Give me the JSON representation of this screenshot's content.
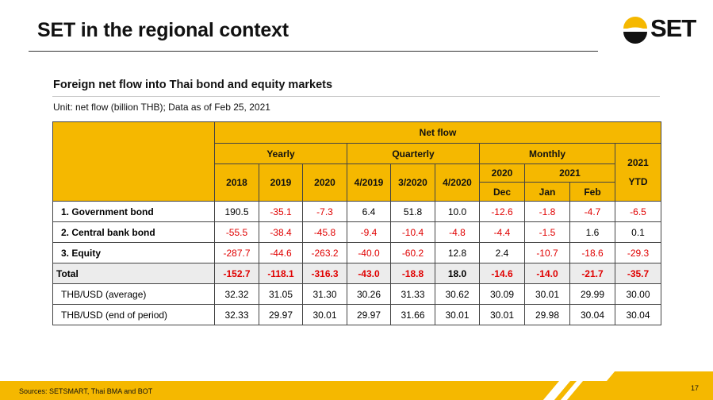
{
  "slide": {
    "title": "SET in the regional context",
    "logo_text": "SET",
    "subtitle": "Foreign net flow into Thai bond and equity markets",
    "unit": "Unit: net flow (billion THB); Data as of Feb 25, 2021",
    "source": "Sources: SETSMART, Thai BMA and BOT",
    "page_number": "17"
  },
  "colors": {
    "accent": "#f5b800",
    "negative": "#e00000",
    "total_row": "#ececec"
  },
  "table": {
    "header": {
      "net_flow": "Net flow",
      "yearly": "Yearly",
      "quarterly": "Quarterly",
      "monthly": "Monthly",
      "ytd_top": "2021",
      "ytd_bottom": "YTD",
      "year_2020": "2020",
      "year_2021": "2021",
      "columns": [
        "2018",
        "2019",
        "2020",
        "4/2019",
        "3/2020",
        "4/2020",
        "Dec",
        "Jan",
        "Feb"
      ]
    },
    "rows": [
      {
        "label": "1. Government bond",
        "cells": [
          "190.5",
          "-35.1",
          "-7.3",
          "6.4",
          "51.8",
          "10.0",
          "-12.6",
          "-1.8",
          "-4.7",
          "-6.5"
        ]
      },
      {
        "label": "2. Central bank bond",
        "cells": [
          "-55.5",
          "-38.4",
          "-45.8",
          "-9.4",
          "-10.4",
          "-4.8",
          "-4.4",
          "-1.5",
          "1.6",
          "0.1"
        ]
      },
      {
        "label": "3. Equity",
        "cells": [
          "-287.7",
          "-44.6",
          "-263.2",
          "-40.0",
          "-60.2",
          "12.8",
          "2.4",
          "-10.7",
          "-18.6",
          "-29.3"
        ]
      },
      {
        "label": "Total",
        "cells": [
          "-152.7",
          "-118.1",
          "-316.3",
          "-43.0",
          "-18.8",
          "18.0",
          "-14.6",
          "-14.0",
          "-21.7",
          "-35.7"
        ]
      },
      {
        "label": "THB/USD (average)",
        "cells": [
          "32.32",
          "31.05",
          "31.30",
          "30.26",
          "31.33",
          "30.62",
          "30.09",
          "30.01",
          "29.99",
          "30.00"
        ]
      },
      {
        "label": "THB/USD (end of period)",
        "cells": [
          "32.33",
          "29.97",
          "30.01",
          "29.97",
          "31.66",
          "30.01",
          "30.01",
          "29.98",
          "30.04",
          "30.04"
        ]
      }
    ]
  }
}
